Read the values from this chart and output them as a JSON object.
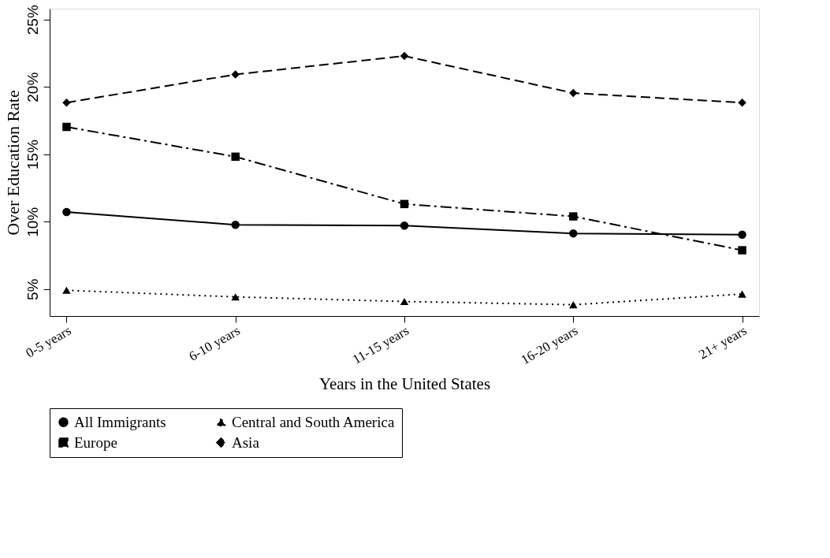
{
  "chart_data": {
    "type": "line",
    "xlabel": "Years in the United States",
    "ylabel": "Over Education Rate",
    "categories": [
      "0-5 years",
      "6-10 years",
      "11-15 years",
      "16-20 years",
      "21+ years"
    ],
    "series": [
      {
        "name": "All Immigrants",
        "color": "#000000",
        "marker": "circle",
        "line_style": "solid",
        "values": [
          10.72,
          9.77,
          9.71,
          9.13,
          9.04
        ]
      },
      {
        "name": "Central and South America",
        "color": "#000000",
        "marker": "triangle",
        "line_style": "dotted",
        "values": [
          4.91,
          4.42,
          4.08,
          3.84,
          4.63
        ]
      },
      {
        "name": "Europe",
        "color": "#000000",
        "marker": "square",
        "line_style": "dashdot",
        "values": [
          17.03,
          14.82,
          11.31,
          10.39,
          7.88
        ]
      },
      {
        "name": "Asia",
        "color": "#000000",
        "marker": "diamond",
        "line_style": "dashed",
        "values": [
          18.83,
          20.92,
          22.29,
          19.54,
          18.83
        ]
      }
    ],
    "ylim": [
      3,
      25.8
    ],
    "yticks": [
      {
        "value": 5,
        "label": "5%"
      },
      {
        "value": 10,
        "label": "10%"
      },
      {
        "value": 15,
        "label": "15%"
      },
      {
        "value": 20,
        "label": "20%"
      },
      {
        "value": 25,
        "label": "25%"
      }
    ],
    "grid": false,
    "legend": "bottom"
  }
}
